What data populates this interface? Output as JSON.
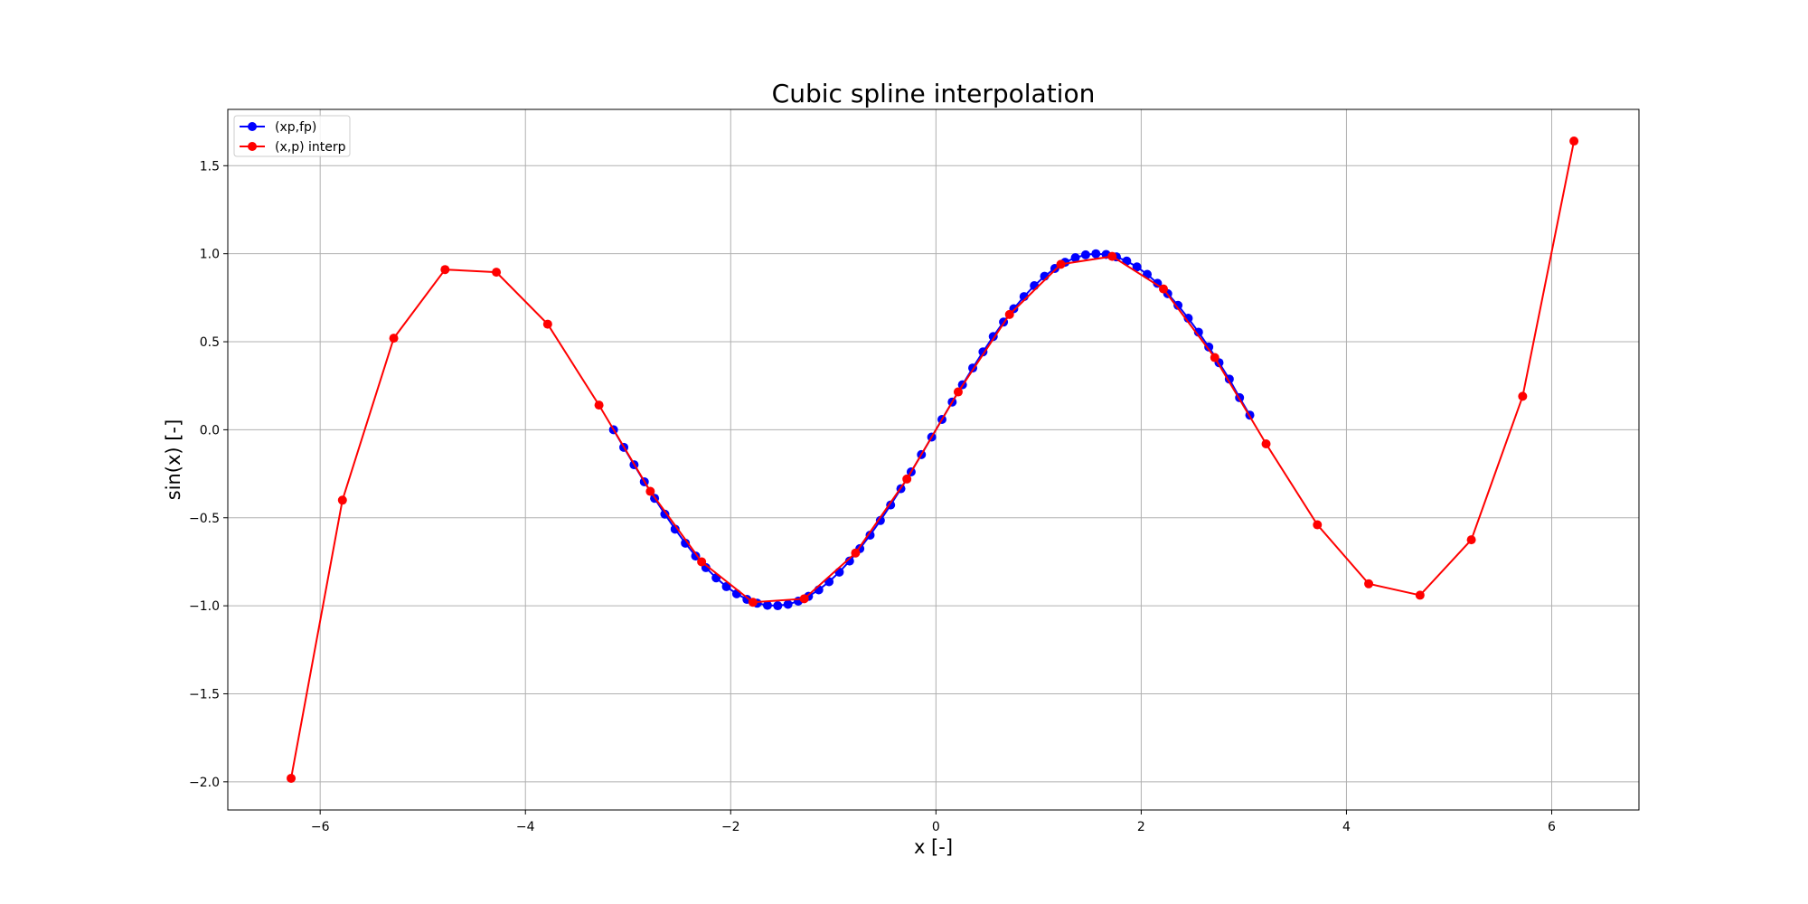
{
  "chart_data": {
    "type": "line",
    "title": "Cubic spline interpolation",
    "xlabel": "x [-]",
    "ylabel": "sin(x) [-]",
    "xlim": [
      -6.9,
      6.85
    ],
    "ylim": [
      -2.16,
      1.82
    ],
    "x_ticks": [
      -6,
      -4,
      -2,
      0,
      2,
      4,
      6
    ],
    "x_tick_labels": [
      "−6",
      "−4",
      "−2",
      "0",
      "2",
      "4",
      "6"
    ],
    "y_ticks": [
      -2.0,
      -1.5,
      -1.0,
      -0.5,
      0.0,
      0.5,
      1.0,
      1.5
    ],
    "y_tick_labels": [
      "−2.0",
      "−1.5",
      "−1.0",
      "−0.5",
      "0.0",
      "0.5",
      "1.0",
      "1.5"
    ],
    "grid": true,
    "legend_position": "upper left",
    "series": [
      {
        "name": "(xp,fp)",
        "color": "#0000ff",
        "marker": "circle",
        "x": [
          -3.1416,
          -3.0416,
          -2.9416,
          -2.8416,
          -2.7416,
          -2.6416,
          -2.5416,
          -2.4416,
          -2.3416,
          -2.2416,
          -2.1416,
          -2.0416,
          -1.9416,
          -1.8416,
          -1.7416,
          -1.6416,
          -1.5416,
          -1.4416,
          -1.3416,
          -1.2416,
          -1.1416,
          -1.0416,
          -0.9416,
          -0.8416,
          -0.7416,
          -0.6416,
          -0.5416,
          -0.4416,
          -0.3416,
          -0.2416,
          -0.1416,
          -0.0416,
          0.0584,
          0.1584,
          0.2584,
          0.3584,
          0.4584,
          0.5584,
          0.6584,
          0.7584,
          0.8584,
          0.9584,
          1.0584,
          1.1584,
          1.2584,
          1.3584,
          1.4584,
          1.5584,
          1.6584,
          1.7584,
          1.8584,
          1.9584,
          2.0584,
          2.1584,
          2.2584,
          2.3584,
          2.4584,
          2.5584,
          2.6584,
          2.7584,
          2.8584,
          2.9584,
          3.0584
        ],
        "y": [
          0.0,
          -0.0998,
          -0.1987,
          -0.2955,
          -0.3894,
          -0.4794,
          -0.5646,
          -0.6442,
          -0.7174,
          -0.7833,
          -0.8415,
          -0.8912,
          -0.932,
          -0.9636,
          -0.9854,
          -0.9975,
          -0.9996,
          -0.9917,
          -0.9738,
          -0.9463,
          -0.9093,
          -0.8632,
          -0.8085,
          -0.7457,
          -0.6755,
          -0.5985,
          -0.5155,
          -0.4274,
          -0.335,
          -0.2392,
          -0.1411,
          -0.0416,
          0.0584,
          0.1577,
          0.2555,
          0.3508,
          0.4425,
          0.5298,
          0.6117,
          0.6875,
          0.7566,
          0.8183,
          0.872,
          0.9162,
          0.9515,
          0.9775,
          0.9938,
          0.9999,
          0.996,
          0.9821,
          0.9584,
          0.9252,
          0.8829,
          0.8318,
          0.7729,
          0.7066,
          0.6335,
          0.5544,
          0.47,
          0.381,
          0.2879,
          0.1822,
          0.0831
        ]
      },
      {
        "name": "(x,p) interp",
        "color": "#ff0000",
        "marker": "circle",
        "x": [
          -6.2832,
          -5.7832,
          -5.2832,
          -4.7832,
          -4.2832,
          -3.7832,
          -3.2832,
          -2.7832,
          -2.2832,
          -1.7832,
          -1.2832,
          -0.7832,
          -0.2832,
          0.2168,
          0.7168,
          1.2168,
          1.7168,
          2.2168,
          2.7168,
          3.2168,
          3.7168,
          4.2168,
          4.7168,
          5.2168,
          5.7168,
          6.2168
        ],
        "y": [
          -1.98,
          -0.4,
          0.52,
          0.91,
          0.895,
          0.6,
          0.14,
          -0.35,
          -0.75,
          -0.98,
          -0.96,
          -0.7,
          -0.28,
          0.215,
          0.655,
          0.94,
          0.985,
          0.8,
          0.41,
          -0.08,
          -0.54,
          -0.875,
          -0.94,
          -0.625,
          0.19,
          1.64
        ]
      }
    ]
  }
}
